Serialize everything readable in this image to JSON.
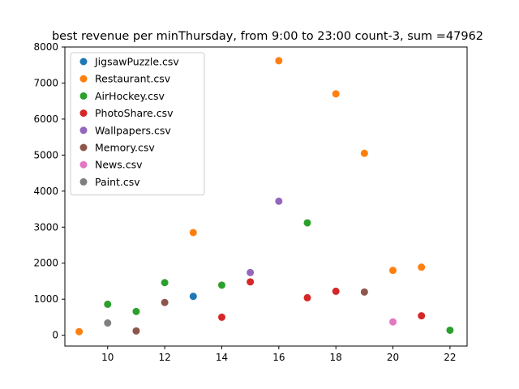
{
  "chart_data": {
    "type": "scatter",
    "title": "best revenue per minThursday, from 9:00 to 23:00 count-3, sum =47962",
    "xlabel": "",
    "ylabel": "",
    "xlim": [
      8.5,
      22.6
    ],
    "ylim": [
      -300,
      8000
    ],
    "xticks": [
      10,
      12,
      14,
      16,
      18,
      20,
      22
    ],
    "yticks": [
      0,
      1000,
      2000,
      3000,
      4000,
      5000,
      6000,
      7000,
      8000
    ],
    "grid": false,
    "legend_position": "top-left",
    "series": [
      {
        "name": "JigsawPuzzle.csv",
        "color": "#1f77b4",
        "points": [
          [
            13,
            1080
          ]
        ]
      },
      {
        "name": "Restaurant.csv",
        "color": "#ff7f0e",
        "points": [
          [
            9,
            100
          ],
          [
            13,
            2850
          ],
          [
            16,
            7620
          ],
          [
            18,
            6700
          ],
          [
            19,
            5050
          ],
          [
            20,
            1800
          ],
          [
            21,
            1890
          ]
        ]
      },
      {
        "name": "AirHockey.csv",
        "color": "#2ca02c",
        "points": [
          [
            10,
            860
          ],
          [
            11,
            660
          ],
          [
            12,
            1460
          ],
          [
            14,
            1390
          ],
          [
            17,
            3120
          ],
          [
            22,
            140
          ]
        ]
      },
      {
        "name": "PhotoShare.csv",
        "color": "#d62728",
        "points": [
          [
            14,
            500
          ],
          [
            15,
            1480
          ],
          [
            17,
            1040
          ],
          [
            18,
            1220
          ],
          [
            21,
            540
          ]
        ]
      },
      {
        "name": "Wallpapers.csv",
        "color": "#9467bd",
        "points": [
          [
            15,
            1740
          ],
          [
            16,
            3720
          ]
        ]
      },
      {
        "name": "Memory.csv",
        "color": "#8c564b",
        "points": [
          [
            11,
            120
          ],
          [
            12,
            910
          ],
          [
            19,
            1200
          ]
        ]
      },
      {
        "name": "News.csv",
        "color": "#e377c2",
        "points": [
          [
            20,
            370
          ]
        ]
      },
      {
        "name": "Paint.csv",
        "color": "#7f7f7f",
        "points": [
          [
            10,
            340
          ]
        ]
      }
    ]
  }
}
